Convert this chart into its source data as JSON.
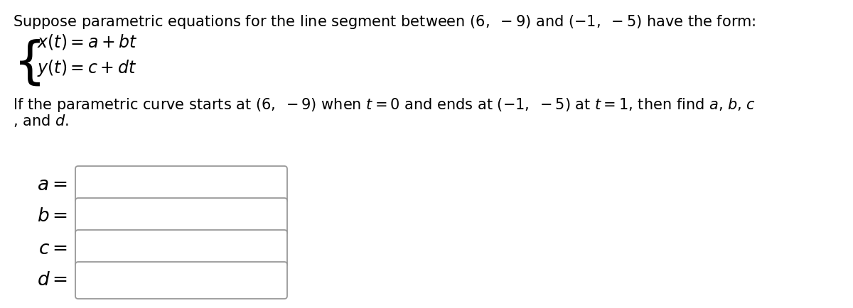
{
  "background_color": "#ffffff",
  "line1": "Suppose parametric equations for the line segment between $(6,\\ -9)$ and $(-1,\\ -5)$ have the form:",
  "eq1": "$x(t) = a + bt$",
  "eq2": "$y(t) = c + dt$",
  "body1": "If the parametric curve starts at $(6,\\ -9)$ when $t = 0$ and ends at $(-1,\\ -5)$ at $t = 1$, then find $a$, $b$, $c$",
  "body2": ", and $d$.",
  "labels": [
    "$a =$",
    "$b =$",
    "$c =$",
    "$d =$"
  ],
  "font_size": 15,
  "eq_font_size": 17,
  "label_font_size": 19,
  "box_color": "#cccccc",
  "text_color": "#000000"
}
